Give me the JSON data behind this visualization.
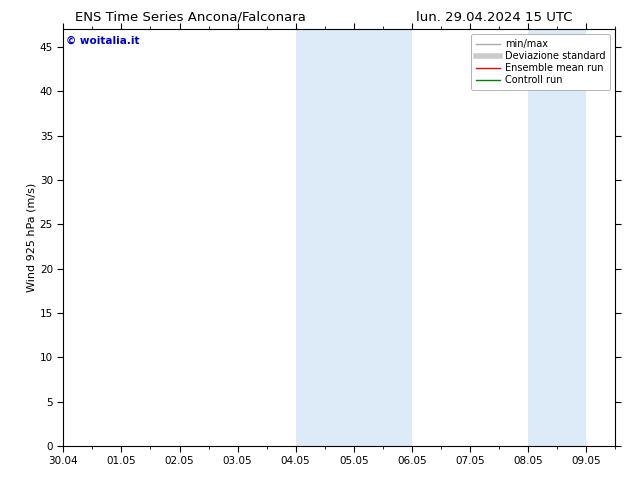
{
  "title_left": "ENS Time Series Ancona/Falconara",
  "title_right": "lun. 29.04.2024 15 UTC",
  "ylabel": "Wind 925 hPa (m/s)",
  "watermark": "© woitalia.it",
  "xtick_labels": [
    "30.04",
    "01.05",
    "02.05",
    "03.05",
    "04.05",
    "05.05",
    "06.05",
    "07.05",
    "08.05",
    "09.05"
  ],
  "xtick_positions": [
    0,
    1,
    2,
    3,
    4,
    5,
    6,
    7,
    8,
    9
  ],
  "xlim": [
    0,
    9.5
  ],
  "ylim": [
    0,
    47
  ],
  "yticks": [
    0,
    5,
    10,
    15,
    20,
    25,
    30,
    35,
    40,
    45
  ],
  "shaded_bands": [
    {
      "xstart": 4.0,
      "xend": 4.5,
      "color": "#ddeaf7"
    },
    {
      "xstart": 4.5,
      "xend": 5.0,
      "color": "#ddeaf7"
    },
    {
      "xstart": 5.0,
      "xend": 5.5,
      "color": "#ddeaf7"
    },
    {
      "xstart": 5.5,
      "xend": 6.0,
      "color": "#ddeaf7"
    },
    {
      "xstart": 8.0,
      "xend": 8.5,
      "color": "#ddeaf7"
    },
    {
      "xstart": 8.5,
      "xend": 9.0,
      "color": "#ddeaf7"
    }
  ],
  "legend_entries": [
    {
      "label": "min/max",
      "color": "#aaaaaa",
      "lw": 1.0
    },
    {
      "label": "Deviazione standard",
      "color": "#cccccc",
      "lw": 4
    },
    {
      "label": "Ensemble mean run",
      "color": "red",
      "lw": 1.0
    },
    {
      "label": "Controll run",
      "color": "green",
      "lw": 1.0
    }
  ],
  "bg_color": "#ffffff",
  "title_fontsize": 9.5,
  "axis_label_fontsize": 8,
  "tick_fontsize": 7.5,
  "watermark_color": "#0000cc",
  "watermark_fontsize": 7.5,
  "legend_fontsize": 7
}
